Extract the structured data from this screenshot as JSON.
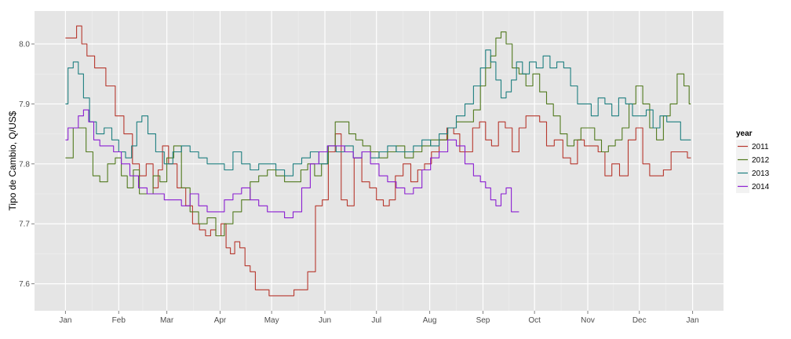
{
  "chart_data": {
    "type": "line",
    "title": "",
    "xlabel": "",
    "ylabel": "Tipo de Cambio, Q/US$",
    "x_ticks": [
      "Jan",
      "Feb",
      "Mar",
      "Apr",
      "May",
      "Jun",
      "Jul",
      "Aug",
      "Sep",
      "Oct",
      "Nov",
      "Dec",
      "Jan"
    ],
    "x_tick_days": [
      0,
      31,
      59,
      90,
      120,
      151,
      181,
      212,
      243,
      273,
      304,
      334,
      365
    ],
    "xlim": [
      -18,
      383
    ],
    "y_ticks": [
      7.6,
      7.7,
      7.8,
      7.9,
      8.0
    ],
    "y_tick_labels": [
      "7.6",
      "7.7",
      "7.8",
      "7.9",
      "8.0"
    ],
    "ylim": [
      7.555,
      8.055
    ],
    "grid": true,
    "legend_title": "year",
    "legend_position": "right",
    "series": [
      {
        "name": "2011",
        "color": "#b7382e",
        "x": [
          0,
          5,
          8,
          11,
          14,
          20,
          27,
          31,
          37,
          41,
          45,
          49,
          53,
          55,
          58,
          62,
          68,
          72,
          76,
          80,
          83,
          86,
          89,
          92,
          95,
          97,
          100,
          103,
          106,
          109,
          112,
          117,
          120,
          126,
          131,
          135,
          139,
          143,
          148,
          151,
          155,
          159,
          162,
          166,
          170,
          175,
          179,
          183,
          187,
          190,
          194,
          199,
          203,
          207,
          211,
          215,
          220,
          224,
          228,
          231,
          235,
          239,
          243,
          246,
          250,
          254,
          258,
          262,
          266,
          270,
          274,
          278,
          282,
          287,
          292,
          296,
          300,
          304,
          308,
          312,
          316,
          320,
          325,
          330,
          334,
          338,
          342,
          346,
          350,
          355,
          360,
          364
        ],
        "y": [
          8.01,
          8.01,
          8.03,
          8.0,
          7.98,
          7.96,
          7.93,
          7.88,
          7.85,
          7.8,
          7.78,
          7.8,
          7.76,
          7.79,
          7.83,
          7.8,
          7.76,
          7.73,
          7.7,
          7.69,
          7.68,
          7.69,
          7.68,
          7.7,
          7.66,
          7.65,
          7.67,
          7.66,
          7.63,
          7.62,
          7.59,
          7.59,
          7.58,
          7.58,
          7.58,
          7.59,
          7.59,
          7.62,
          7.73,
          7.74,
          7.82,
          7.85,
          7.74,
          7.73,
          7.81,
          7.77,
          7.76,
          7.74,
          7.73,
          7.74,
          7.78,
          7.8,
          7.77,
          7.79,
          7.8,
          7.82,
          7.84,
          7.86,
          7.85,
          7.82,
          7.82,
          7.86,
          7.87,
          7.84,
          7.83,
          7.87,
          7.86,
          7.82,
          7.86,
          7.88,
          7.88,
          7.87,
          7.83,
          7.84,
          7.81,
          7.8,
          7.84,
          7.83,
          7.83,
          7.82,
          7.78,
          7.8,
          7.78,
          7.84,
          7.86,
          7.8,
          7.78,
          7.78,
          7.79,
          7.82,
          7.82,
          7.81
        ]
      },
      {
        "name": "2012",
        "color": "#527a1f",
        "x": [
          0,
          3,
          6,
          10,
          14,
          18,
          22,
          27,
          31,
          34,
          38,
          41,
          45,
          49,
          53,
          57,
          61,
          65,
          70,
          75,
          80,
          85,
          90,
          95,
          100,
          105,
          110,
          115,
          120,
          125,
          130,
          135,
          139,
          143,
          147,
          151,
          155,
          159,
          163,
          167,
          171,
          175,
          180,
          185,
          190,
          195,
          200,
          205,
          210,
          215,
          220,
          225,
          230,
          235,
          240,
          243,
          246,
          249,
          252,
          255,
          258,
          262,
          266,
          270,
          274,
          278,
          282,
          286,
          290,
          294,
          298,
          302,
          306,
          310,
          314,
          318,
          322,
          326,
          330,
          334,
          338,
          342,
          346,
          350,
          354,
          358,
          362,
          364
        ],
        "y": [
          7.81,
          7.81,
          7.86,
          7.86,
          7.82,
          7.78,
          7.77,
          7.8,
          7.81,
          7.78,
          7.76,
          7.79,
          7.75,
          7.75,
          7.78,
          7.77,
          7.81,
          7.83,
          7.76,
          7.72,
          7.7,
          7.71,
          7.68,
          7.7,
          7.72,
          7.74,
          7.77,
          7.78,
          7.79,
          7.78,
          7.77,
          7.77,
          7.79,
          7.8,
          7.78,
          7.8,
          7.83,
          7.87,
          7.87,
          7.85,
          7.84,
          7.83,
          7.82,
          7.81,
          7.82,
          7.83,
          7.81,
          7.82,
          7.83,
          7.84,
          7.84,
          7.86,
          7.87,
          7.87,
          7.89,
          7.93,
          7.96,
          7.98,
          8.01,
          8.02,
          8.0,
          7.96,
          7.95,
          7.93,
          7.95,
          7.92,
          7.9,
          7.88,
          7.85,
          7.83,
          7.84,
          7.86,
          7.86,
          7.84,
          7.82,
          7.83,
          7.84,
          7.86,
          7.9,
          7.93,
          7.9,
          7.86,
          7.84,
          7.88,
          7.9,
          7.95,
          7.93,
          7.9
        ]
      },
      {
        "name": "2013",
        "color": "#1e7f80",
        "x": [
          0,
          3,
          6,
          9,
          12,
          16,
          20,
          25,
          29,
          33,
          37,
          40,
          43,
          46,
          50,
          55,
          60,
          65,
          70,
          75,
          80,
          85,
          90,
          95,
          100,
          105,
          110,
          115,
          120,
          125,
          130,
          135,
          140,
          145,
          150,
          155,
          160,
          165,
          170,
          175,
          180,
          185,
          190,
          195,
          200,
          205,
          210,
          215,
          220,
          225,
          230,
          235,
          240,
          243,
          246,
          249,
          252,
          255,
          258,
          261,
          264,
          268,
          272,
          276,
          280,
          284,
          288,
          292,
          296,
          300,
          304,
          308,
          312,
          316,
          320,
          324,
          328,
          332,
          336,
          340,
          344,
          348,
          352,
          356,
          360,
          364
        ],
        "y": [
          7.9,
          7.96,
          7.97,
          7.95,
          7.91,
          7.87,
          7.85,
          7.86,
          7.84,
          7.82,
          7.81,
          7.83,
          7.87,
          7.88,
          7.85,
          7.82,
          7.8,
          7.82,
          7.83,
          7.82,
          7.81,
          7.8,
          7.8,
          7.79,
          7.82,
          7.8,
          7.79,
          7.8,
          7.8,
          7.79,
          7.78,
          7.8,
          7.81,
          7.82,
          7.8,
          7.83,
          7.82,
          7.83,
          7.81,
          7.82,
          7.81,
          7.82,
          7.83,
          7.82,
          7.82,
          7.83,
          7.84,
          7.83,
          7.85,
          7.86,
          7.88,
          7.9,
          7.93,
          7.96,
          7.99,
          7.97,
          7.94,
          7.91,
          7.92,
          7.94,
          7.97,
          7.95,
          7.97,
          7.96,
          7.98,
          7.96,
          7.97,
          7.96,
          7.93,
          7.9,
          7.9,
          7.88,
          7.91,
          7.9,
          7.88,
          7.91,
          7.9,
          7.88,
          7.88,
          7.89,
          7.86,
          7.88,
          7.87,
          7.87,
          7.84,
          7.84
        ]
      },
      {
        "name": "2014",
        "color": "#8b1ed2",
        "x": [
          0,
          3,
          6,
          9,
          12,
          15,
          18,
          22,
          26,
          30,
          35,
          40,
          45,
          50,
          55,
          60,
          65,
          70,
          75,
          80,
          85,
          90,
          95,
          100,
          105,
          110,
          115,
          120,
          125,
          130,
          135,
          140,
          145,
          150,
          155,
          160,
          165,
          170,
          175,
          180,
          185,
          190,
          195,
          200,
          205,
          210,
          215,
          220,
          225,
          230,
          235,
          240,
          243,
          246,
          249,
          252,
          255,
          258,
          261,
          264
        ],
        "y": [
          7.84,
          7.86,
          7.86,
          7.88,
          7.89,
          7.87,
          7.84,
          7.83,
          7.83,
          7.82,
          7.8,
          7.78,
          7.76,
          7.75,
          7.75,
          7.74,
          7.74,
          7.73,
          7.75,
          7.73,
          7.72,
          7.72,
          7.74,
          7.75,
          7.76,
          7.74,
          7.73,
          7.72,
          7.72,
          7.71,
          7.72,
          7.76,
          7.8,
          7.82,
          7.83,
          7.83,
          7.82,
          7.81,
          7.82,
          7.8,
          7.78,
          7.77,
          7.76,
          7.75,
          7.76,
          7.79,
          7.81,
          7.82,
          7.84,
          7.83,
          7.8,
          7.78,
          7.77,
          7.76,
          7.74,
          7.73,
          7.75,
          7.76,
          7.72,
          7.72
        ]
      }
    ]
  }
}
